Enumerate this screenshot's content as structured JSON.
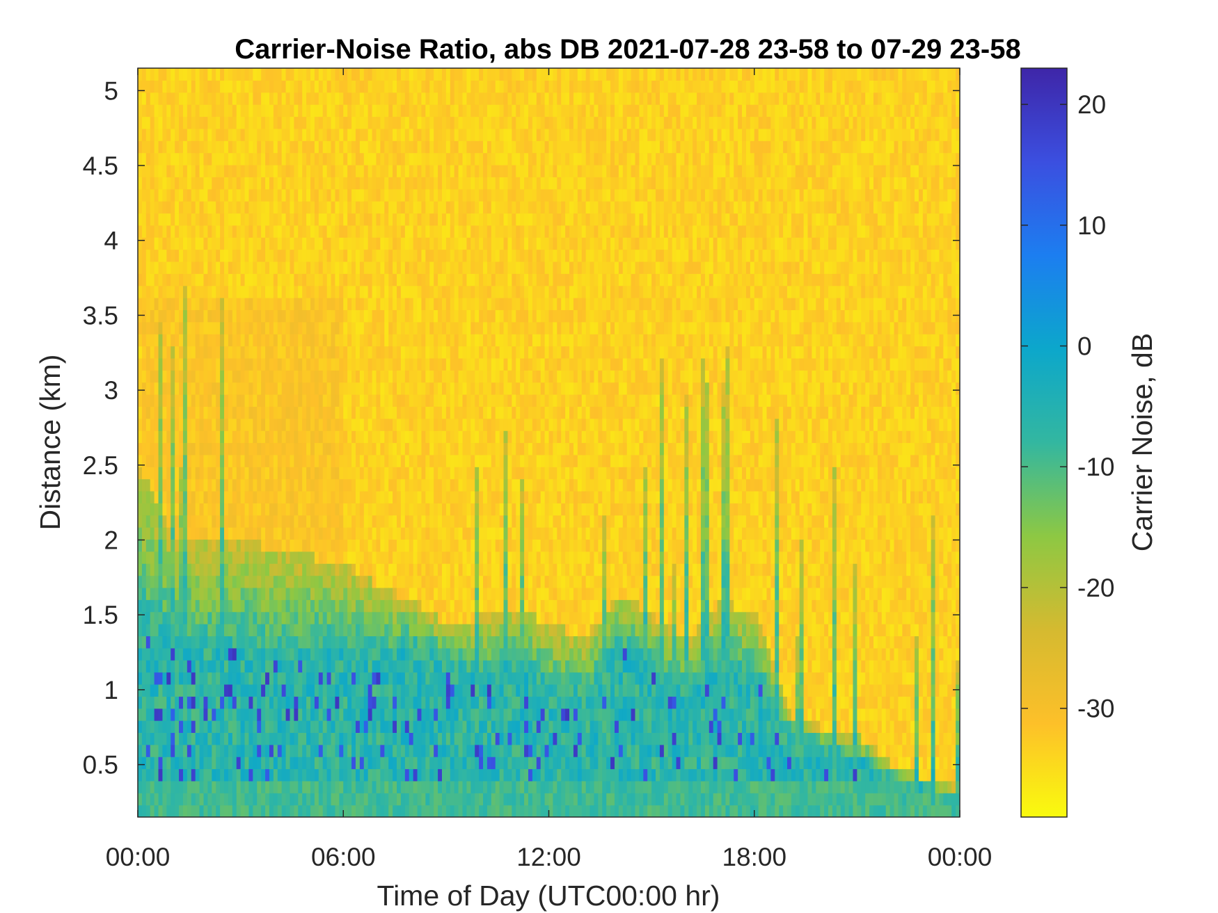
{
  "chart_data": {
    "type": "heatmap",
    "title": "Carrier-Noise Ratio, abs DB 2021-07-28 23-58 to 07-29 23-58",
    "xlabel": "Time of Day (UTC00:00 hr)",
    "ylabel": "Distance (km)",
    "colorbar_label": "Carrier Noise, dB",
    "xlim_hours": [
      0,
      24
    ],
    "ylim_km": [
      0.15,
      5.15
    ],
    "clim_db": [
      -39,
      23
    ],
    "x_ticks": [
      "00:00",
      "06:00",
      "12:00",
      "18:00",
      "00:00"
    ],
    "y_ticks": [
      "0.5",
      "1",
      "1.5",
      "2",
      "2.5",
      "3",
      "3.5",
      "4",
      "4.5",
      "5"
    ],
    "colorbar_ticks": [
      "-30",
      "-20",
      "-10",
      "0",
      "10",
      "20"
    ],
    "colormap": "parula_reversed",
    "colormap_stops": [
      "#f9fb0e",
      "#fdc029",
      "#d5ba30",
      "#8dc843",
      "#33b7a0",
      "#0ca7cb",
      "#1c7ef0",
      "#3b4fe0",
      "#3e26a8"
    ],
    "boundary_profile": {
      "description_of_values": "approximate height (km) of the transition from high carrier-noise (blue/green) to low (yellow)",
      "time_hours": [
        0,
        1,
        2,
        3,
        4,
        5,
        6,
        7,
        8,
        9,
        10,
        11,
        12,
        13,
        14,
        15,
        16,
        17,
        18,
        19,
        20,
        21,
        22,
        23,
        24
      ],
      "top_km": [
        2.45,
        2.0,
        1.95,
        1.95,
        1.9,
        1.85,
        1.8,
        1.65,
        1.55,
        1.4,
        1.45,
        1.5,
        1.4,
        1.3,
        1.6,
        1.45,
        1.3,
        1.55,
        1.45,
        0.8,
        0.7,
        0.65,
        0.45,
        0.35,
        0.3
      ],
      "core_km": [
        1.3,
        1.25,
        1.2,
        1.2,
        1.15,
        1.2,
        1.2,
        1.15,
        1.25,
        1.1,
        1.05,
        1.1,
        0.95,
        0.9,
        1.25,
        1.1,
        0.95,
        1.1,
        1.0,
        0.65,
        0.55,
        0.5,
        0.35,
        0.3,
        0.25
      ]
    },
    "grid": false,
    "colorbar_position": "right"
  }
}
